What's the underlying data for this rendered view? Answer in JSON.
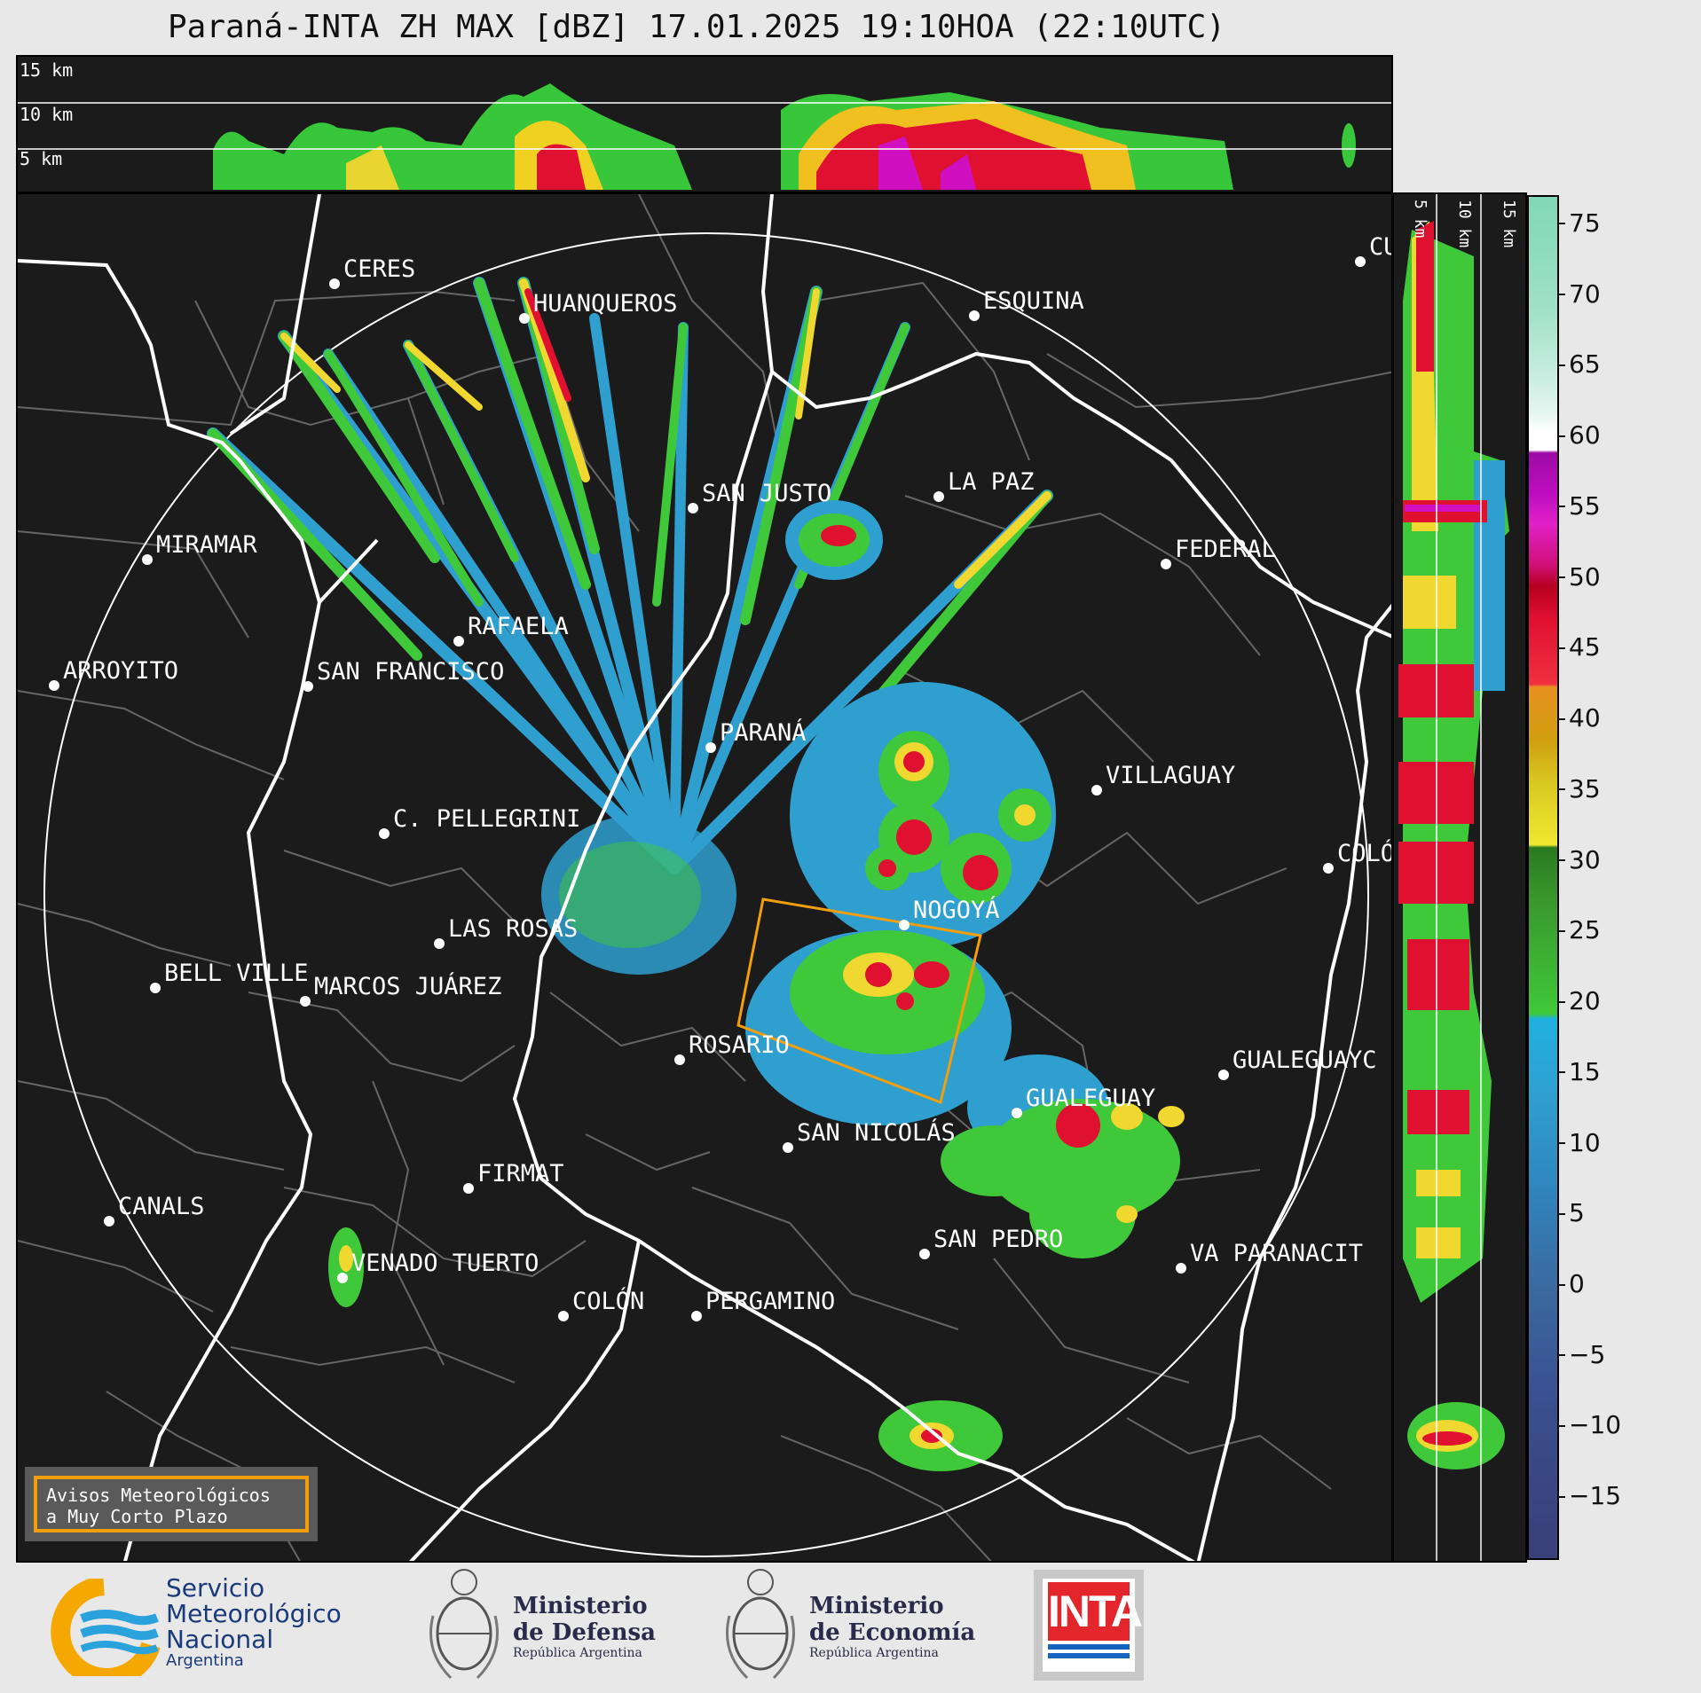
{
  "title": "Paraná-INTA ZH MAX [dBZ] 17.01.2025 19:10HOA (22:10UTC)",
  "top_panel": {
    "height_labels": [
      "15 km",
      "10 km",
      "5 km"
    ]
  },
  "side_panel": {
    "height_labels": [
      "5 km",
      "10 km",
      "15 km"
    ]
  },
  "colorbar": {
    "unit": "dBZ",
    "ticks": [
      "75",
      "70",
      "65",
      "60",
      "55",
      "50",
      "45",
      "40",
      "35",
      "30",
      "25",
      "20",
      "15",
      "10",
      "5",
      "0",
      "−5",
      "−10",
      "−15"
    ]
  },
  "cities": [
    {
      "name": "CERES"
    },
    {
      "name": "HUANQUEROS"
    },
    {
      "name": "ESQUINA"
    },
    {
      "name": "CU"
    },
    {
      "name": "SAN JUSTO"
    },
    {
      "name": "LA PAZ"
    },
    {
      "name": "MIRAMAR"
    },
    {
      "name": "FEDERAL"
    },
    {
      "name": "RAFAELA"
    },
    {
      "name": "ARROYITO"
    },
    {
      "name": "SAN FRANCISCO"
    },
    {
      "name": "PARANÁ"
    },
    {
      "name": "VILLAGUAY"
    },
    {
      "name": "C. PELLEGRINI"
    },
    {
      "name": "COLÓ"
    },
    {
      "name": "NOGOYÁ"
    },
    {
      "name": "LAS ROSAS"
    },
    {
      "name": "BELL VILLE"
    },
    {
      "name": "MARCOS JUÁREZ"
    },
    {
      "name": "ROSARIO"
    },
    {
      "name": "GUALEGUAYC"
    },
    {
      "name": "GUALEGUAY"
    },
    {
      "name": "SAN NICOLÁS"
    },
    {
      "name": "FIRMAT"
    },
    {
      "name": "CANALS"
    },
    {
      "name": "SAN PEDRO"
    },
    {
      "name": "VENADO TUERTO"
    },
    {
      "name": "VA PARANACIT"
    },
    {
      "name": "COLÓN"
    },
    {
      "name": "PERGAMINO"
    }
  ],
  "warning_box": {
    "line1": "Avisos Meteorológicos",
    "line2": "a Muy Corto Plazo",
    "border_color": "#f59e0b"
  },
  "footer": {
    "smn": {
      "line1": "Servicio",
      "line2": "Meteorológico",
      "line3": "Nacional",
      "line4": "Argentina"
    },
    "defensa": {
      "line1": "Ministerio",
      "line2": "de Defensa",
      "line3": "República Argentina"
    },
    "economia": {
      "line1": "Ministerio",
      "line2": "de Economía",
      "line3": "República Argentina"
    },
    "inta": {
      "text": "INTA",
      "color": "#e3262b"
    }
  }
}
